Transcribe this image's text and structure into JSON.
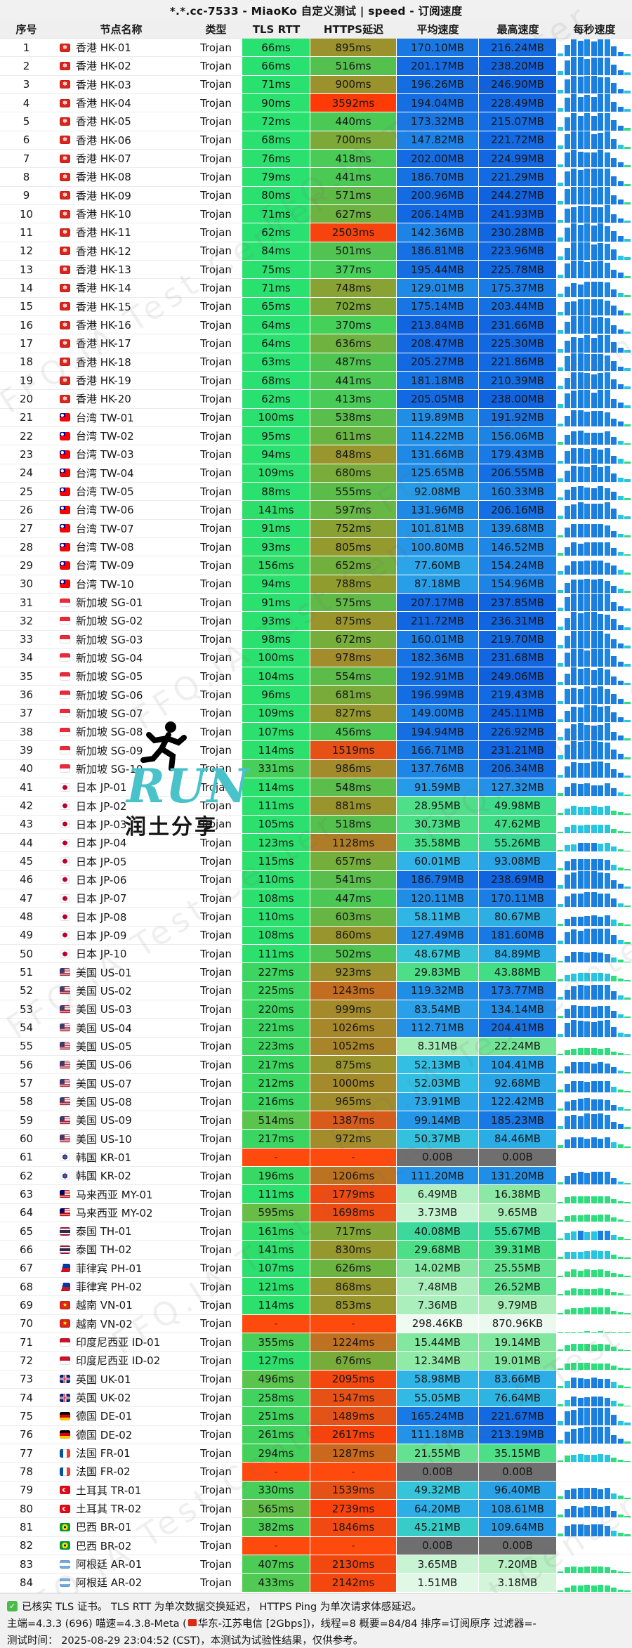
{
  "title": "*.*.cc-7533 - MiaoKo 自定义测试 | speed - 订阅速度",
  "columns": [
    "序号",
    "节点名称",
    "类型",
    "TLS RTT",
    "HTTPS延迟",
    "平均速度",
    "最高速度",
    "每秒速度"
  ],
  "rows": [
    [
      1,
      "hk",
      "香港 HK-01",
      "Trojan",
      "66ms",
      "895ms",
      "170.10MB",
      "216.24MB"
    ],
    [
      2,
      "hk",
      "香港 HK-02",
      "Trojan",
      "66ms",
      "516ms",
      "201.17MB",
      "238.20MB"
    ],
    [
      3,
      "hk",
      "香港 HK-03",
      "Trojan",
      "71ms",
      "900ms",
      "196.26MB",
      "246.90MB"
    ],
    [
      4,
      "hk",
      "香港 HK-04",
      "Trojan",
      "90ms",
      "3592ms",
      "194.04MB",
      "228.49MB"
    ],
    [
      5,
      "hk",
      "香港 HK-05",
      "Trojan",
      "72ms",
      "440ms",
      "173.32MB",
      "215.07MB"
    ],
    [
      6,
      "hk",
      "香港 HK-06",
      "Trojan",
      "68ms",
      "700ms",
      "147.82MB",
      "221.72MB"
    ],
    [
      7,
      "hk",
      "香港 HK-07",
      "Trojan",
      "76ms",
      "418ms",
      "202.00MB",
      "224.99MB"
    ],
    [
      8,
      "hk",
      "香港 HK-08",
      "Trojan",
      "79ms",
      "441ms",
      "186.70MB",
      "221.29MB"
    ],
    [
      9,
      "hk",
      "香港 HK-09",
      "Trojan",
      "80ms",
      "571ms",
      "200.96MB",
      "244.27MB"
    ],
    [
      10,
      "hk",
      "香港 HK-10",
      "Trojan",
      "71ms",
      "627ms",
      "206.14MB",
      "241.93MB"
    ],
    [
      11,
      "hk",
      "香港 HK-11",
      "Trojan",
      "62ms",
      "2503ms",
      "142.36MB",
      "230.28MB"
    ],
    [
      12,
      "hk",
      "香港 HK-12",
      "Trojan",
      "84ms",
      "501ms",
      "186.81MB",
      "223.96MB"
    ],
    [
      13,
      "hk",
      "香港 HK-13",
      "Trojan",
      "75ms",
      "377ms",
      "195.44MB",
      "225.78MB"
    ],
    [
      14,
      "hk",
      "香港 HK-14",
      "Trojan",
      "71ms",
      "748ms",
      "129.01MB",
      "175.37MB"
    ],
    [
      15,
      "hk",
      "香港 HK-15",
      "Trojan",
      "65ms",
      "702ms",
      "175.14MB",
      "203.44MB"
    ],
    [
      16,
      "hk",
      "香港 HK-16",
      "Trojan",
      "64ms",
      "370ms",
      "213.84MB",
      "231.66MB"
    ],
    [
      17,
      "hk",
      "香港 HK-17",
      "Trojan",
      "64ms",
      "636ms",
      "208.47MB",
      "225.30MB"
    ],
    [
      18,
      "hk",
      "香港 HK-18",
      "Trojan",
      "63ms",
      "487ms",
      "205.27MB",
      "221.86MB"
    ],
    [
      19,
      "hk",
      "香港 HK-19",
      "Trojan",
      "68ms",
      "441ms",
      "181.18MB",
      "210.39MB"
    ],
    [
      20,
      "hk",
      "香港 HK-20",
      "Trojan",
      "62ms",
      "413ms",
      "205.05MB",
      "238.00MB"
    ],
    [
      21,
      "tw",
      "台湾 TW-01",
      "Trojan",
      "100ms",
      "538ms",
      "119.89MB",
      "191.92MB"
    ],
    [
      22,
      "tw",
      "台湾 TW-02",
      "Trojan",
      "95ms",
      "611ms",
      "114.22MB",
      "156.06MB"
    ],
    [
      23,
      "tw",
      "台湾 TW-03",
      "Trojan",
      "94ms",
      "848ms",
      "131.66MB",
      "179.43MB"
    ],
    [
      24,
      "tw",
      "台湾 TW-04",
      "Trojan",
      "109ms",
      "680ms",
      "125.65MB",
      "206.55MB"
    ],
    [
      25,
      "tw",
      "台湾 TW-05",
      "Trojan",
      "88ms",
      "555ms",
      "92.08MB",
      "160.33MB"
    ],
    [
      26,
      "tw",
      "台湾 TW-06",
      "Trojan",
      "141ms",
      "597ms",
      "131.96MB",
      "206.16MB"
    ],
    [
      27,
      "tw",
      "台湾 TW-07",
      "Trojan",
      "91ms",
      "752ms",
      "101.81MB",
      "139.68MB"
    ],
    [
      28,
      "tw",
      "台湾 TW-08",
      "Trojan",
      "93ms",
      "805ms",
      "100.80MB",
      "146.52MB"
    ],
    [
      29,
      "tw",
      "台湾 TW-09",
      "Trojan",
      "156ms",
      "652ms",
      "77.60MB",
      "154.24MB"
    ],
    [
      30,
      "tw",
      "台湾 TW-10",
      "Trojan",
      "94ms",
      "788ms",
      "87.18MB",
      "154.96MB"
    ],
    [
      31,
      "sg",
      "新加坡 SG-01",
      "Trojan",
      "91ms",
      "575ms",
      "207.17MB",
      "237.85MB"
    ],
    [
      32,
      "sg",
      "新加坡 SG-02",
      "Trojan",
      "93ms",
      "875ms",
      "211.72MB",
      "236.31MB"
    ],
    [
      33,
      "sg",
      "新加坡 SG-03",
      "Trojan",
      "98ms",
      "672ms",
      "160.01MB",
      "219.70MB"
    ],
    [
      34,
      "sg",
      "新加坡 SG-04",
      "Trojan",
      "100ms",
      "978ms",
      "182.36MB",
      "231.68MB"
    ],
    [
      35,
      "sg",
      "新加坡 SG-05",
      "Trojan",
      "104ms",
      "554ms",
      "192.91MB",
      "249.06MB"
    ],
    [
      36,
      "sg",
      "新加坡 SG-06",
      "Trojan",
      "96ms",
      "681ms",
      "196.99MB",
      "219.43MB"
    ],
    [
      37,
      "sg",
      "新加坡 SG-07",
      "Trojan",
      "109ms",
      "827ms",
      "149.00MB",
      "245.11MB"
    ],
    [
      38,
      "sg",
      "新加坡 SG-08",
      "Trojan",
      "107ms",
      "456ms",
      "194.94MB",
      "226.92MB"
    ],
    [
      39,
      "sg",
      "新加坡 SG-09",
      "Trojan",
      "114ms",
      "1519ms",
      "166.71MB",
      "231.21MB"
    ],
    [
      40,
      "sg",
      "新加坡 SG-10",
      "Trojan",
      "331ms",
      "986ms",
      "137.76MB",
      "206.34MB"
    ],
    [
      41,
      "jp",
      "日本 JP-01",
      "Trojan",
      "114ms",
      "548ms",
      "91.59MB",
      "127.32MB"
    ],
    [
      42,
      "jp",
      "日本 JP-02",
      "Trojan",
      "111ms",
      "881ms",
      "28.95MB",
      "49.98MB"
    ],
    [
      43,
      "jp",
      "日本 JP-03",
      "Trojan",
      "105ms",
      "518ms",
      "30.73MB",
      "47.62MB"
    ],
    [
      44,
      "jp",
      "日本 JP-04",
      "Trojan",
      "123ms",
      "1128ms",
      "35.58MB",
      "55.26MB"
    ],
    [
      45,
      "jp",
      "日本 JP-05",
      "Trojan",
      "115ms",
      "657ms",
      "60.01MB",
      "93.08MB"
    ],
    [
      46,
      "jp",
      "日本 JP-06",
      "Trojan",
      "110ms",
      "541ms",
      "186.79MB",
      "238.69MB"
    ],
    [
      47,
      "jp",
      "日本 JP-07",
      "Trojan",
      "108ms",
      "447ms",
      "120.11MB",
      "170.11MB"
    ],
    [
      48,
      "jp",
      "日本 JP-08",
      "Trojan",
      "110ms",
      "603ms",
      "58.11MB",
      "80.67MB"
    ],
    [
      49,
      "jp",
      "日本 JP-09",
      "Trojan",
      "108ms",
      "860ms",
      "127.49MB",
      "181.60MB"
    ],
    [
      50,
      "jp",
      "日本 JP-10",
      "Trojan",
      "111ms",
      "502ms",
      "48.67MB",
      "84.89MB"
    ],
    [
      51,
      "us",
      "美国 US-01",
      "Trojan",
      "227ms",
      "923ms",
      "29.83MB",
      "43.88MB"
    ],
    [
      52,
      "us",
      "美国 US-02",
      "Trojan",
      "225ms",
      "1243ms",
      "119.32MB",
      "173.77MB"
    ],
    [
      53,
      "us",
      "美国 US-03",
      "Trojan",
      "220ms",
      "999ms",
      "83.54MB",
      "134.14MB"
    ],
    [
      54,
      "us",
      "美国 US-04",
      "Trojan",
      "221ms",
      "1026ms",
      "112.71MB",
      "204.41MB"
    ],
    [
      55,
      "us",
      "美国 US-05",
      "Trojan",
      "223ms",
      "1052ms",
      "8.31MB",
      "22.24MB"
    ],
    [
      56,
      "us",
      "美国 US-06",
      "Trojan",
      "217ms",
      "875ms",
      "52.13MB",
      "104.41MB"
    ],
    [
      57,
      "us",
      "美国 US-07",
      "Trojan",
      "212ms",
      "1000ms",
      "52.03MB",
      "92.68MB"
    ],
    [
      58,
      "us",
      "美国 US-08",
      "Trojan",
      "216ms",
      "965ms",
      "73.91MB",
      "122.42MB"
    ],
    [
      59,
      "us",
      "美国 US-09",
      "Trojan",
      "514ms",
      "1387ms",
      "99.14MB",
      "185.23MB"
    ],
    [
      60,
      "us",
      "美国 US-10",
      "Trojan",
      "217ms",
      "972ms",
      "50.37MB",
      "84.46MB"
    ],
    [
      61,
      "kr",
      "韩国 KR-01",
      "Trojan",
      "-",
      "-",
      "0.00B",
      "0.00B"
    ],
    [
      62,
      "kr",
      "韩国 KR-02",
      "Trojan",
      "196ms",
      "1206ms",
      "111.20MB",
      "131.20MB"
    ],
    [
      63,
      "my",
      "马来西亚 MY-01",
      "Trojan",
      "111ms",
      "1779ms",
      "6.49MB",
      "16.38MB"
    ],
    [
      64,
      "my",
      "马来西亚 MY-02",
      "Trojan",
      "595ms",
      "1698ms",
      "3.73MB",
      "9.65MB"
    ],
    [
      65,
      "th",
      "泰国 TH-01",
      "Trojan",
      "161ms",
      "717ms",
      "40.08MB",
      "55.67MB"
    ],
    [
      66,
      "th",
      "泰国 TH-02",
      "Trojan",
      "141ms",
      "830ms",
      "29.68MB",
      "39.31MB"
    ],
    [
      67,
      "ph",
      "菲律宾 PH-01",
      "Trojan",
      "107ms",
      "626ms",
      "14.02MB",
      "25.55MB"
    ],
    [
      68,
      "ph",
      "菲律宾 PH-02",
      "Trojan",
      "121ms",
      "868ms",
      "7.48MB",
      "26.52MB"
    ],
    [
      69,
      "vn",
      "越南 VN-01",
      "Trojan",
      "114ms",
      "853ms",
      "7.36MB",
      "9.79MB"
    ],
    [
      70,
      "vn",
      "越南 VN-02",
      "Trojan",
      "-",
      "-",
      "298.46KB",
      "870.96KB"
    ],
    [
      71,
      "id",
      "印度尼西亚 ID-01",
      "Trojan",
      "355ms",
      "1224ms",
      "15.44MB",
      "19.14MB"
    ],
    [
      72,
      "id",
      "印度尼西亚 ID-02",
      "Trojan",
      "127ms",
      "676ms",
      "12.34MB",
      "19.01MB"
    ],
    [
      73,
      "uk",
      "英国 UK-01",
      "Trojan",
      "496ms",
      "2095ms",
      "58.98MB",
      "83.66MB"
    ],
    [
      74,
      "uk",
      "英国 UK-02",
      "Trojan",
      "258ms",
      "1547ms",
      "55.05MB",
      "76.64MB"
    ],
    [
      75,
      "de",
      "德国 DE-01",
      "Trojan",
      "251ms",
      "1489ms",
      "165.24MB",
      "221.67MB"
    ],
    [
      76,
      "de",
      "德国 DE-02",
      "Trojan",
      "261ms",
      "2617ms",
      "111.18MB",
      "213.19MB"
    ],
    [
      77,
      "fr",
      "法国 FR-01",
      "Trojan",
      "294ms",
      "1287ms",
      "21.55MB",
      "35.15MB"
    ],
    [
      78,
      "fr",
      "法国 FR-02",
      "Trojan",
      "-",
      "-",
      "0.00B",
      "0.00B"
    ],
    [
      79,
      "tr",
      "土耳其 TR-01",
      "Trojan",
      "330ms",
      "1539ms",
      "49.32MB",
      "96.40MB"
    ],
    [
      80,
      "tr",
      "土耳其 TR-02",
      "Trojan",
      "565ms",
      "2739ms",
      "64.20MB",
      "108.61MB"
    ],
    [
      81,
      "br",
      "巴西 BR-01",
      "Trojan",
      "382ms",
      "1846ms",
      "45.21MB",
      "109.64MB"
    ],
    [
      82,
      "br",
      "巴西 BR-02",
      "Trojan",
      "-",
      "-",
      "0.00B",
      "0.00B"
    ],
    [
      83,
      "ar",
      "阿根廷 AR-01",
      "Trojan",
      "407ms",
      "2130ms",
      "3.65MB",
      "7.20MB"
    ],
    [
      84,
      "ar",
      "阿根廷 AR-02",
      "Trojan",
      "433ms",
      "2142ms",
      "1.51MB",
      "3.18MB"
    ]
  ],
  "footer": {
    "line1": "已核实 TLS 证书。 TLS RTT 为单次数据交换延迟， HTTPS Ping 为单次请求体感延迟。",
    "line2_pre": "主端=4.3.3 (696) 喵速=4.3.8-Meta (",
    "line2_post": "华东-江苏电信 [2Gbps])，线程=8 概要=84/84 排序=订阅原序 过滤器=-",
    "line3": "测试时间： 2025-08-29 23:04:52 (CST)，本测试为试验性结果，仅供参考。"
  },
  "watermark": {
    "diagonal_text": "FFQ.IA Test Center",
    "run_text": "RUN",
    "run_sub": "润土分享"
  },
  "icons": {
    "hk_flag_glyph": "✽",
    "vn_flag_glyph": "★",
    "check_glyph": "✓"
  },
  "colors": {
    "latency_green": "#2ae06e",
    "latency_olive": "#9a9029",
    "latency_orange": "#e35317",
    "error_red": "#ff4a0e",
    "speed_blue": "#1a78e4",
    "speed_cyan": "#30b8e4",
    "speed_green": "#3edd85",
    "zero_gray": "#6f6f6f",
    "run_teal": "#4ac2ca"
  }
}
